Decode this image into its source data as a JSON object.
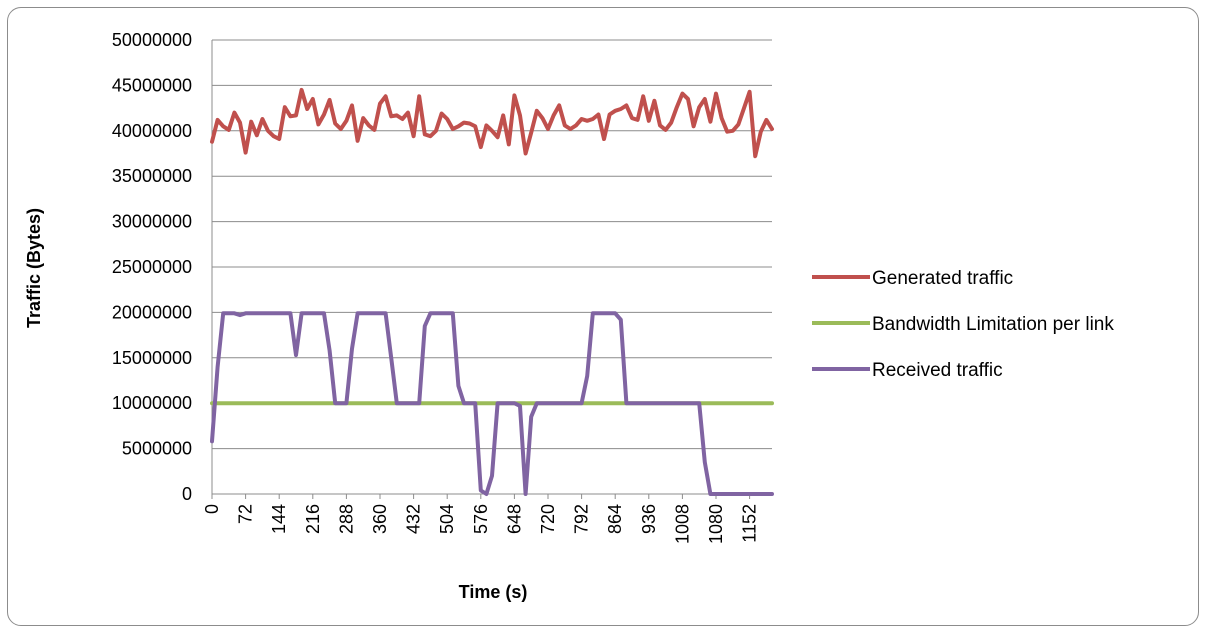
{
  "chart_data": {
    "type": "line",
    "title": "",
    "xlabel": "Time (s)",
    "ylabel": "Traffic (Bytes)",
    "ylim": [
      0,
      50000000
    ],
    "yticks": [
      "0",
      "5000000",
      "10000000",
      "15000000",
      "20000000",
      "25000000",
      "30000000",
      "35000000",
      "40000000",
      "45000000",
      "50000000"
    ],
    "xticks": [
      "0",
      "72",
      "144",
      "216",
      "288",
      "360",
      "432",
      "504",
      "576",
      "648",
      "720",
      "792",
      "864",
      "936",
      "1008",
      "1080",
      "1152"
    ],
    "xlim": [
      0,
      1200
    ],
    "grid": "horizontal",
    "legend_position": "right",
    "series": [
      {
        "name": "Generated traffic",
        "color": "#c0504d",
        "x": [
          0,
          12,
          24,
          36,
          48,
          60,
          72,
          84,
          96,
          108,
          120,
          132,
          144,
          156,
          168,
          180,
          192,
          204,
          216,
          228,
          240,
          252,
          264,
          276,
          288,
          300,
          312,
          324,
          336,
          348,
          360,
          372,
          384,
          396,
          408,
          420,
          432,
          444,
          456,
          468,
          480,
          492,
          504,
          516,
          528,
          540,
          552,
          564,
          576,
          588,
          600,
          612,
          624,
          636,
          648,
          660,
          672,
          684,
          696,
          708,
          720,
          732,
          744,
          756,
          768,
          780,
          792,
          804,
          816,
          828,
          840,
          852,
          864,
          876,
          888,
          900,
          912,
          924,
          936,
          948,
          960,
          972,
          984,
          996,
          1008,
          1020,
          1032,
          1044,
          1056,
          1068,
          1080,
          1092,
          1104,
          1116,
          1128,
          1140,
          1152,
          1164,
          1176,
          1188,
          1200
        ],
        "values": [
          38800000,
          41200000,
          40500000,
          40100000,
          42000000,
          40900000,
          37600000,
          41000000,
          39500000,
          41300000,
          40000000,
          39400000,
          39100000,
          42600000,
          41600000,
          41700000,
          44500000,
          42400000,
          43500000,
          40700000,
          41800000,
          43400000,
          40800000,
          40200000,
          41100000,
          42800000,
          38900000,
          41400000,
          40600000,
          40100000,
          43000000,
          43800000,
          41600000,
          41700000,
          41300000,
          42000000,
          39400000,
          43800000,
          39600000,
          39400000,
          40000000,
          41900000,
          41300000,
          40200000,
          40500000,
          40900000,
          40800000,
          40500000,
          38200000,
          40600000,
          40000000,
          39300000,
          41700000,
          38500000,
          43900000,
          41700000,
          37500000,
          39800000,
          42200000,
          41400000,
          40200000,
          41700000,
          42800000,
          40600000,
          40200000,
          40600000,
          41300000,
          41100000,
          41300000,
          41800000,
          39100000,
          41800000,
          42200000,
          42400000,
          42800000,
          41400000,
          41200000,
          43800000,
          41100000,
          43300000,
          40600000,
          40100000,
          40900000,
          42600000,
          44100000,
          43500000,
          40500000,
          42600000,
          43500000,
          41000000,
          44100000,
          41400000,
          39900000,
          40000000,
          40700000,
          42500000,
          44300000,
          37200000,
          39900000,
          41200000,
          40200000
        ]
      },
      {
        "name": "Bandwidth Limitation per link",
        "color": "#9bbb59",
        "x": [
          0,
          1200
        ],
        "values": [
          10000000,
          10000000
        ]
      },
      {
        "name": "Received traffic",
        "color": "#8064a2",
        "x": [
          0,
          12,
          24,
          36,
          48,
          60,
          72,
          84,
          96,
          108,
          120,
          132,
          144,
          156,
          168,
          180,
          192,
          204,
          216,
          228,
          240,
          252,
          264,
          276,
          288,
          300,
          312,
          324,
          336,
          348,
          360,
          372,
          384,
          396,
          408,
          420,
          432,
          444,
          456,
          468,
          480,
          492,
          504,
          516,
          528,
          540,
          552,
          564,
          576,
          588,
          600,
          612,
          624,
          636,
          648,
          660,
          672,
          684,
          696,
          708,
          720,
          732,
          744,
          756,
          768,
          780,
          792,
          804,
          816,
          828,
          840,
          852,
          864,
          876,
          888,
          900,
          912,
          924,
          936,
          948,
          960,
          972,
          984,
          996,
          1008,
          1020,
          1032,
          1044,
          1056,
          1068,
          1080,
          1092,
          1104,
          1116,
          1128,
          1140,
          1152,
          1164,
          1176,
          1188,
          1200
        ],
        "values": [
          5800000,
          14000000,
          19900000,
          19900000,
          19900000,
          19700000,
          19900000,
          19900000,
          19900000,
          19900000,
          19900000,
          19900000,
          19900000,
          19900000,
          19900000,
          15300000,
          19900000,
          19900000,
          19900000,
          19900000,
          19900000,
          15800000,
          10000000,
          10000000,
          10000000,
          16000000,
          19900000,
          19900000,
          19900000,
          19900000,
          19900000,
          19900000,
          15000000,
          10000000,
          10000000,
          10000000,
          10000000,
          10000000,
          18500000,
          19900000,
          19900000,
          19900000,
          19900000,
          19900000,
          11900000,
          10000000,
          10000000,
          10000000,
          400000,
          0,
          2000000,
          10000000,
          10000000,
          10000000,
          10000000,
          9700000,
          0,
          8500000,
          10000000,
          10000000,
          10000000,
          10000000,
          10000000,
          10000000,
          10000000,
          10000000,
          10000000,
          13000000,
          19900000,
          19900000,
          19900000,
          19900000,
          19900000,
          19200000,
          10000000,
          10000000,
          10000000,
          10000000,
          10000000,
          10000000,
          10000000,
          10000000,
          10000000,
          10000000,
          10000000,
          10000000,
          10000000,
          10000000,
          3500000,
          0,
          0,
          0,
          0,
          0,
          0,
          0,
          0,
          0,
          0,
          0,
          0
        ]
      }
    ]
  }
}
